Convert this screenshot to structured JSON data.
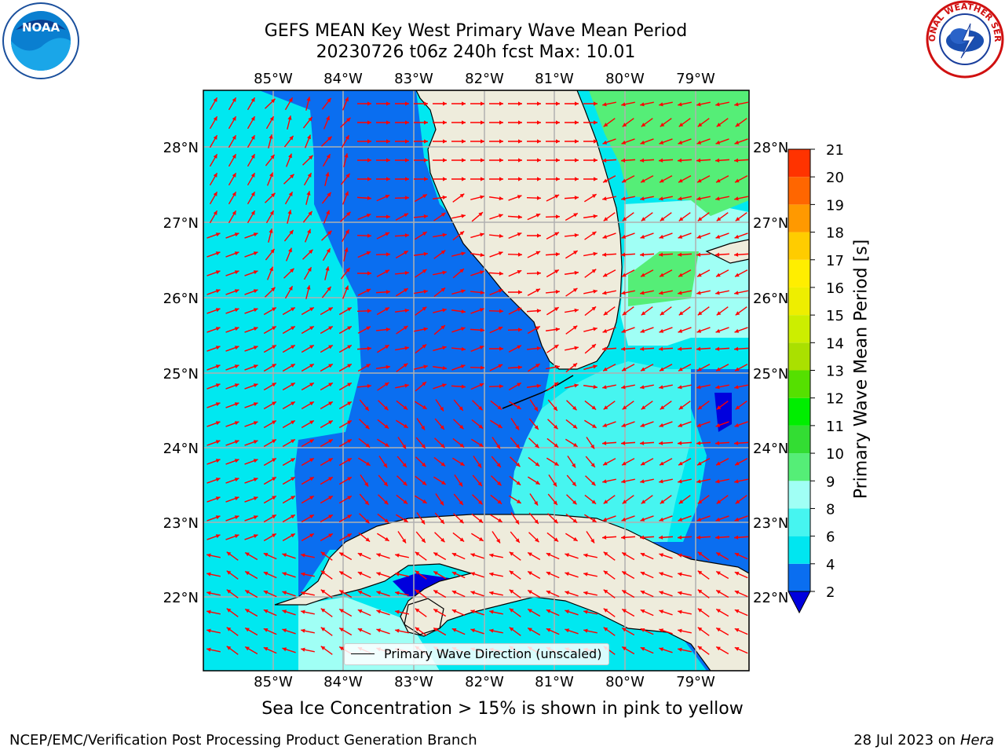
{
  "title_line1": "GEFS MEAN Key West Primary Wave Mean Period",
  "title_line2": "20230726 t06z 240h fcst   Max: 10.01",
  "lon_ticks": [
    "85°W",
    "84°W",
    "83°W",
    "82°W",
    "81°W",
    "80°W",
    "79°W"
  ],
  "lat_ticks": [
    "28°N",
    "27°N",
    "26°N",
    "25°N",
    "24°N",
    "23°N",
    "22°N"
  ],
  "colorbar": {
    "label": "Primary Wave Mean Period [s]",
    "ticks": [
      "2",
      "4",
      "6",
      "8",
      "9",
      "10",
      "11",
      "12",
      "13",
      "14",
      "15",
      "16",
      "17",
      "18",
      "19",
      "20",
      "21"
    ],
    "colors": [
      "#0a6ef0",
      "#00e6f0",
      "#46f5f0",
      "#a0fff5",
      "#55ee77",
      "#33dd33",
      "#00ee00",
      "#55e000",
      "#aae000",
      "#ccee00",
      "#eeee00",
      "#ffee00",
      "#ffcc00",
      "#ff9900",
      "#ff6600",
      "#ff3300",
      "#ff0000"
    ],
    "extend_color": "#0000dd"
  },
  "legend_label": "Primary Wave Direction (unscaled)",
  "ice_note": "Sea Ice Concentration > 15% is shown in pink to yellow",
  "credit": "NCEP/EMC/Verification Post Processing Product Generation Branch",
  "date_note": "28 Jul 2023 on",
  "host": "Hera",
  "logos": {
    "left": "noaa-logo",
    "right": "national-weather-service-logo"
  },
  "noaa_logo_text": "NOAA",
  "nws_logo_text": "NATIONAL WEATHER SERVICE",
  "colors": {
    "land": "#eeecdc",
    "arrow": "#ff0000",
    "grid": "#b0b0b0"
  }
}
